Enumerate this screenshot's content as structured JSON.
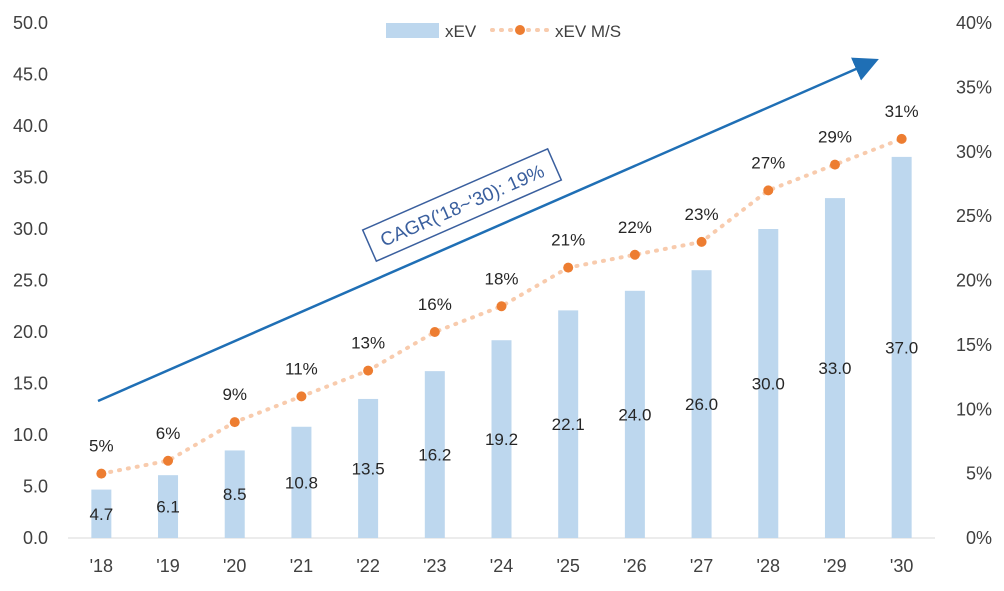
{
  "chart_data": {
    "type": "bar",
    "categories": [
      "'18",
      "'19",
      "'20",
      "'21",
      "'22",
      "'23",
      "'24",
      "'25",
      "'26",
      "'27",
      "'28",
      "'29",
      "'30"
    ],
    "series": [
      {
        "name": "xEV",
        "type": "bar",
        "axis": "left",
        "color": "#bdd7ee",
        "values": [
          4.7,
          6.1,
          8.5,
          10.8,
          13.5,
          16.2,
          19.2,
          22.1,
          24.0,
          26.0,
          30.0,
          33.0,
          37.0
        ],
        "labels": [
          "4.7",
          "6.1",
          "8.5",
          "10.8",
          "13.5",
          "16.2",
          "19.2",
          "22.1",
          "24.0",
          "26.0",
          "30.0",
          "33.0",
          "37.0"
        ]
      },
      {
        "name": "xEV M/S",
        "type": "line",
        "axis": "right",
        "color": "#ed7d31",
        "line_color": "#f8cbad",
        "values": [
          5,
          6,
          9,
          11,
          13,
          16,
          18,
          21,
          22,
          23,
          27,
          29,
          31
        ],
        "labels": [
          "5%",
          "6%",
          "9%",
          "11%",
          "13%",
          "16%",
          "18%",
          "21%",
          "22%",
          "23%",
          "27%",
          "29%",
          "31%"
        ]
      }
    ],
    "y_left": {
      "ylim": [
        0,
        50
      ],
      "ticks": [
        "0.0",
        "5.0",
        "10.0",
        "15.0",
        "20.0",
        "25.0",
        "30.0",
        "35.0",
        "40.0",
        "45.0",
        "50.0"
      ]
    },
    "y_right": {
      "ylim": [
        0,
        40
      ],
      "ticks": [
        "0%",
        "5%",
        "10%",
        "15%",
        "20%",
        "25%",
        "30%",
        "35%",
        "40%"
      ]
    },
    "grid": false,
    "legend": {
      "position": "top-center",
      "items": [
        "xEV",
        "xEV M/S"
      ]
    },
    "annotation": {
      "text": "CAGR('18~'30): 19%",
      "arrow_color": "#1f6fb5",
      "box_color": "#3a5f9e"
    }
  }
}
